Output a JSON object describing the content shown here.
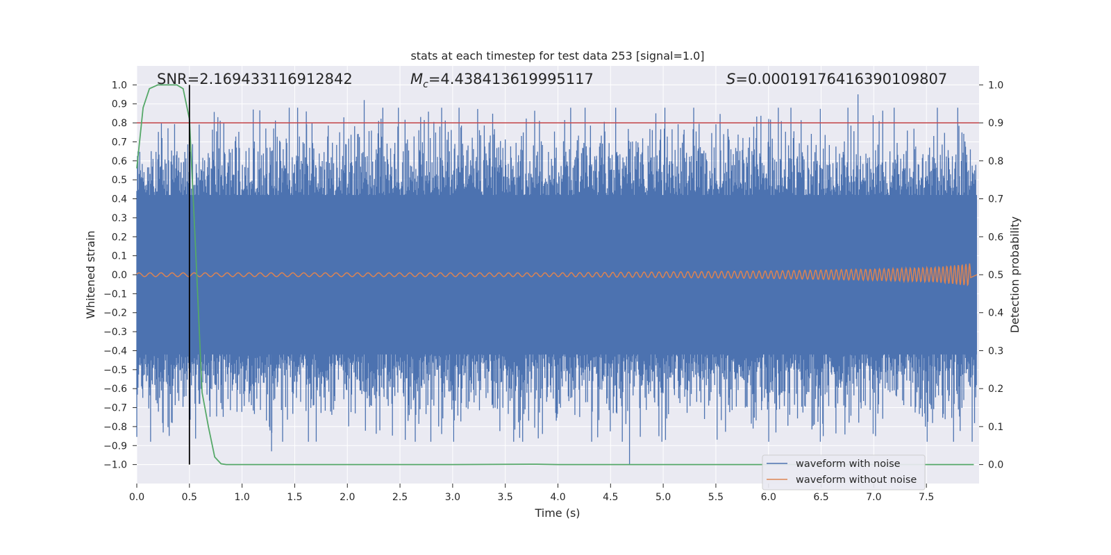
{
  "chart_data": {
    "type": "line",
    "title": "stats at each timestep for test data 253 [signal=1.0]",
    "xlabel": "Time (s)",
    "ylabel": "Whitened strain",
    "y2label": "Detection probability",
    "xlim": [
      0.0,
      8.0
    ],
    "ylim": [
      -1.1,
      1.1
    ],
    "y2lim": [
      -0.05,
      1.05
    ],
    "x_ticks": [
      "0.0",
      "0.5",
      "1.0",
      "1.5",
      "2.0",
      "2.5",
      "3.0",
      "3.5",
      "4.0",
      "4.5",
      "5.0",
      "5.5",
      "6.0",
      "6.5",
      "7.0",
      "7.5"
    ],
    "y_ticks": [
      "1.0",
      "0.9",
      "0.8",
      "0.7",
      "0.6",
      "0.5",
      "0.4",
      "0.3",
      "0.2",
      "0.1",
      "0.0",
      "-0.1",
      "-0.2",
      "-0.3",
      "-0.4",
      "-0.5",
      "-0.6",
      "-0.7",
      "-0.8",
      "-0.9",
      "-1.0"
    ],
    "y2_ticks": [
      "1.0",
      "0.9",
      "0.8",
      "0.7",
      "0.6",
      "0.5",
      "0.4",
      "0.3",
      "0.2",
      "0.1",
      "0.0"
    ],
    "annotations": {
      "snr": "SNR=2.169433116912842",
      "mc_symbol": "M",
      "mc_sub": "c",
      "mc_value": "=4.438413619995117",
      "s_symbol": "S",
      "s_value": "=0.00019176416390109807"
    },
    "threshold": {
      "value": 0.9,
      "axis": "detection probability",
      "color": "#c44e52"
    },
    "marker_time": 0.5,
    "legend": {
      "position": "lower-right",
      "entries": [
        {
          "label": "waveform with noise",
          "color": "#4c72b0"
        },
        {
          "label": "waveform without noise",
          "color": "#dd8452"
        }
      ]
    },
    "series": [
      {
        "name": "waveform with noise",
        "color": "#4c72b0",
        "envelope": {
          "typical_abs": 0.5,
          "max": 0.95,
          "min": -1.0
        },
        "peaks": [
          {
            "x": 0.77,
            "y": 0.83
          },
          {
            "x": 1.3,
            "y": 0.77
          },
          {
            "x": 1.28,
            "y": -0.93
          },
          {
            "x": 1.61,
            "y": 0.86
          },
          {
            "x": 2.16,
            "y": 0.92
          },
          {
            "x": 2.55,
            "y": -0.87
          },
          {
            "x": 4.68,
            "y": -1.0
          },
          {
            "x": 4.93,
            "y": 0.85
          },
          {
            "x": 6.85,
            "y": 0.95
          },
          {
            "x": 6.52,
            "y": -0.85
          }
        ]
      },
      {
        "name": "waveform without noise",
        "color": "#dd8452",
        "description_points": [
          {
            "x": 0.0,
            "amp": 0.01
          },
          {
            "x": 4.0,
            "amp": 0.01
          },
          {
            "x": 6.0,
            "amp": 0.02
          },
          {
            "x": 7.0,
            "amp": 0.03
          },
          {
            "x": 7.6,
            "amp": 0.04
          },
          {
            "x": 7.92,
            "amp": 0.06
          }
        ]
      },
      {
        "name": "detection probability",
        "color": "#55a868",
        "axis": "right",
        "x": [
          0.0,
          0.06,
          0.12,
          0.2,
          0.3,
          0.38,
          0.44,
          0.5,
          0.56,
          0.62,
          0.68,
          0.74,
          0.8,
          0.85,
          1.0,
          2.0,
          3.0,
          3.8,
          4.0,
          5.0,
          6.0,
          7.0,
          7.95
        ],
        "y": [
          0.78,
          0.94,
          0.99,
          1.0,
          1.0,
          1.0,
          0.99,
          0.91,
          0.56,
          0.19,
          0.1,
          0.02,
          0.002,
          0.0,
          0.0,
          0.0,
          0.0,
          0.001,
          0.0,
          0.0,
          0.0,
          0.0,
          0.0
        ]
      }
    ]
  }
}
